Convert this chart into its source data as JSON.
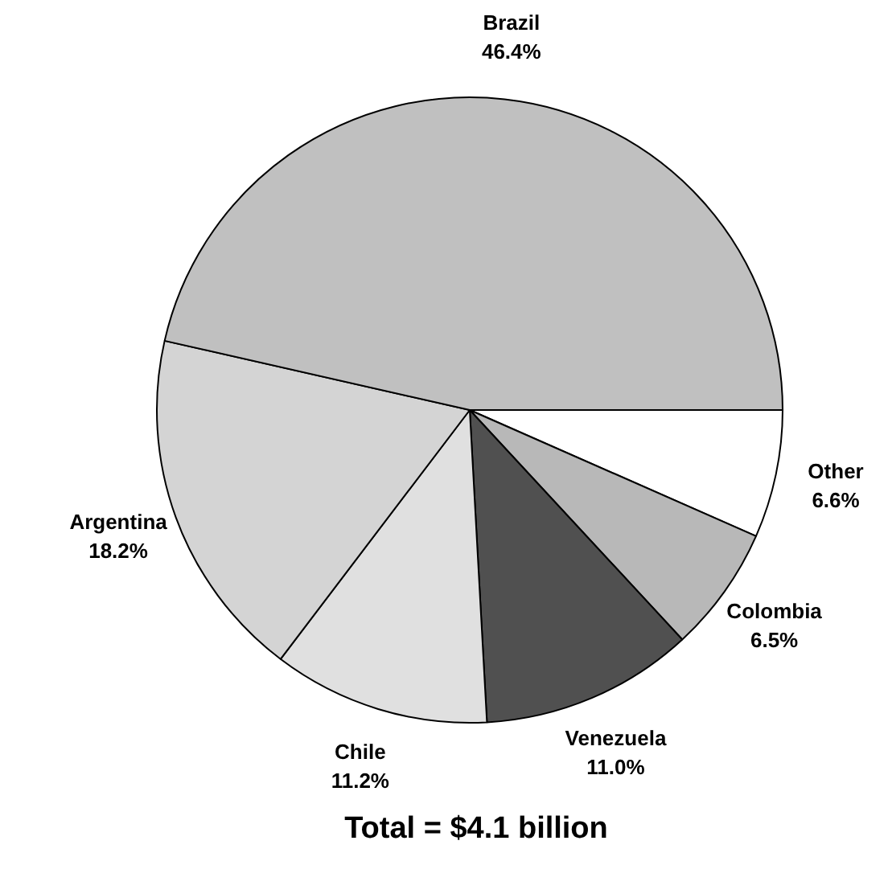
{
  "chart_data": {
    "type": "pie",
    "categories": [
      "Other",
      "Colombia",
      "Venezuela",
      "Chile",
      "Argentina",
      "Brazil"
    ],
    "values": [
      6.6,
      6.5,
      11.0,
      11.2,
      18.2,
      46.4
    ],
    "colors": [
      "#ffffff",
      "#b8b8b8",
      "#505050",
      "#e0e0e0",
      "#d4d4d4",
      "#c0c0c0"
    ],
    "value_labels": [
      "6.6%",
      "6.5%",
      "11.0%",
      "11.2%",
      "18.2%",
      "46.4%"
    ],
    "annotations": [
      "Total = $4.1 billion"
    ]
  }
}
